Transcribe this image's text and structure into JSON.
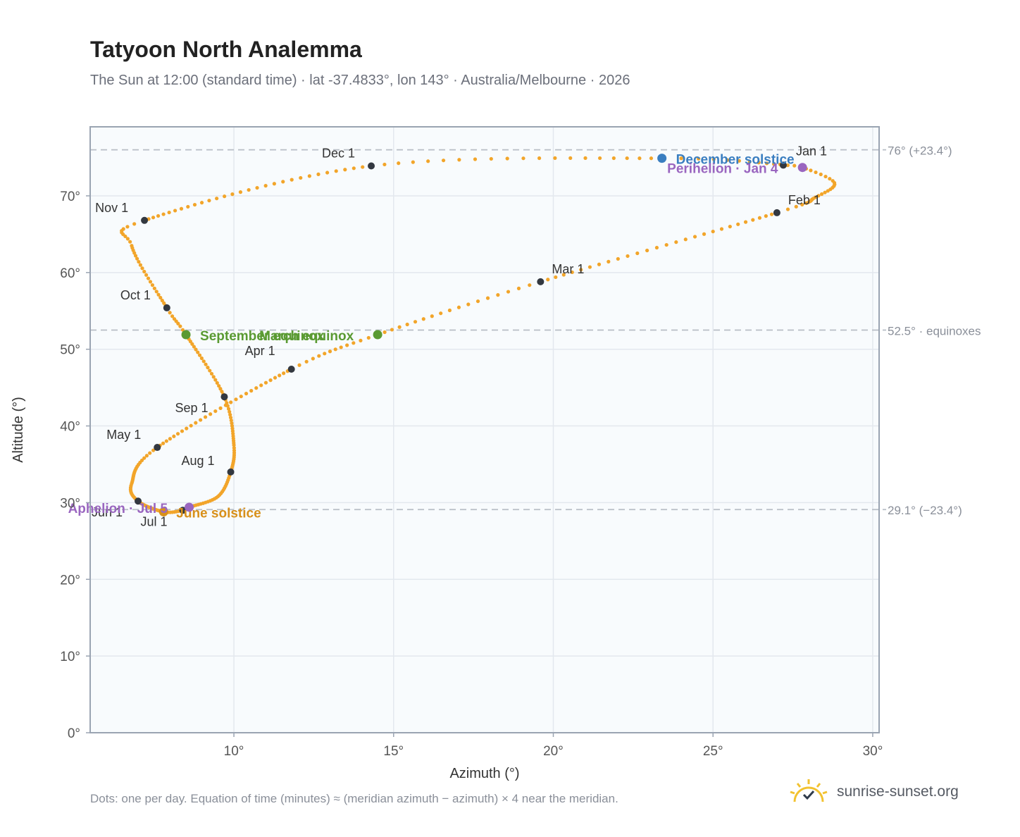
{
  "title": "Tatyoon North Analemma",
  "subtitle": "The Sun at 12:00 (standard time) · lat -37.4833°, lon 143° · Australia/Melbourne · 2026",
  "footnote": "Dots: one per day. Equation of time (minutes) ≈ (meridian azimuth − azimuth) × 4 near the meridian.",
  "brand": {
    "name": "sunrise-sunset.org",
    "icon": "sun-check-icon"
  },
  "colors": {
    "path": "#f2a52a",
    "month_dot": "#333840",
    "solstice_dec": "#3a7ec0",
    "solstice_jun": "#d8901a",
    "equinox": "#5a9a32",
    "perihelion_aphelion": "#9a66c0",
    "reference_line": "#b8bec6",
    "plot_bg": "#f8fbfd",
    "grid": "#e3e8ee"
  },
  "chart_data": {
    "type": "scatter",
    "xlabel": "Azimuth (°)",
    "ylabel": "Altitude (°)",
    "xlim": [
      5.5,
      30.2
    ],
    "ylim": [
      0,
      79
    ],
    "xticks": [
      10,
      15,
      20,
      25,
      30
    ],
    "xtick_labels": [
      "10°",
      "15°",
      "20°",
      "25°",
      "30°"
    ],
    "yticks": [
      0,
      10,
      20,
      30,
      40,
      50,
      60,
      70
    ],
    "ytick_labels": [
      "0°",
      "10°",
      "20°",
      "30°",
      "40°",
      "50°",
      "60°",
      "70°"
    ],
    "grid": true,
    "reference_lines": [
      {
        "y": 76.0,
        "label": "76° (+23.4°)"
      },
      {
        "y": 52.5,
        "label": "52.5° · equinoxes"
      },
      {
        "y": 29.1,
        "label": "29.1° (−23.4°)"
      }
    ],
    "path_anchors": [
      {
        "day": 1,
        "x": 27.2,
        "y": 74.0
      },
      {
        "day": 4,
        "x": 27.8,
        "y": 73.7
      },
      {
        "day": 12,
        "x": 28.8,
        "y": 71.7
      },
      {
        "day": 21,
        "x": 28.2,
        "y": 69.8
      },
      {
        "day": 32,
        "x": 27.0,
        "y": 67.8
      },
      {
        "day": 60,
        "x": 19.6,
        "y": 58.8
      },
      {
        "day": 78,
        "x": 14.5,
        "y": 51.9
      },
      {
        "day": 91,
        "x": 11.8,
        "y": 47.4
      },
      {
        "day": 121,
        "x": 7.6,
        "y": 37.2
      },
      {
        "day": 140,
        "x": 6.8,
        "y": 32.5
      },
      {
        "day": 152,
        "x": 7.0,
        "y": 30.2
      },
      {
        "day": 172,
        "x": 7.8,
        "y": 28.8
      },
      {
        "day": 182,
        "x": 8.4,
        "y": 29.0
      },
      {
        "day": 186,
        "x": 8.6,
        "y": 29.4
      },
      {
        "day": 200,
        "x": 9.5,
        "y": 30.8
      },
      {
        "day": 213,
        "x": 9.9,
        "y": 34.0
      },
      {
        "day": 226,
        "x": 10.0,
        "y": 37.5
      },
      {
        "day": 244,
        "x": 9.7,
        "y": 43.8
      },
      {
        "day": 266,
        "x": 8.5,
        "y": 51.9
      },
      {
        "day": 274,
        "x": 7.9,
        "y": 55.4
      },
      {
        "day": 295,
        "x": 6.8,
        "y": 63.5
      },
      {
        "day": 305,
        "x": 7.2,
        "y": 66.8
      },
      {
        "day": 335,
        "x": 14.3,
        "y": 73.9
      },
      {
        "day": 355,
        "x": 23.4,
        "y": 74.9
      },
      {
        "day": 365,
        "x": 27.1,
        "y": 74.1
      }
    ],
    "month_markers": [
      {
        "label": "Jan 1",
        "x": 27.2,
        "y": 74.0
      },
      {
        "label": "Feb 1",
        "x": 27.0,
        "y": 67.8
      },
      {
        "label": "Mar 1",
        "x": 19.6,
        "y": 58.8
      },
      {
        "label": "Apr 1",
        "x": 11.8,
        "y": 47.4
      },
      {
        "label": "May 1",
        "x": 7.6,
        "y": 37.2
      },
      {
        "label": "Jun 1",
        "x": 7.0,
        "y": 30.2
      },
      {
        "label": "Jul 1",
        "x": 8.4,
        "y": 29.0
      },
      {
        "label": "Aug 1",
        "x": 9.9,
        "y": 34.0
      },
      {
        "label": "Sep 1",
        "x": 9.7,
        "y": 43.8
      },
      {
        "label": "Oct 1",
        "x": 7.9,
        "y": 55.4
      },
      {
        "label": "Nov 1",
        "x": 7.2,
        "y": 66.8
      },
      {
        "label": "Dec 1",
        "x": 14.3,
        "y": 73.9
      }
    ],
    "events": [
      {
        "label": "December solstice",
        "x": 23.4,
        "y": 74.9,
        "kind": "solstice_dec"
      },
      {
        "label": "June solstice",
        "x": 7.8,
        "y": 28.8,
        "kind": "solstice_jun"
      },
      {
        "label": "March equinox",
        "x": 14.5,
        "y": 51.9,
        "kind": "equinox"
      },
      {
        "label": "September equinox",
        "x": 8.5,
        "y": 51.9,
        "kind": "equinox"
      },
      {
        "label": "Perihelion · Jan 4",
        "x": 27.8,
        "y": 73.7,
        "kind": "perihelion_aphelion"
      },
      {
        "label": "Aphelion · Jul 5",
        "x": 8.6,
        "y": 29.4,
        "kind": "perihelion_aphelion"
      }
    ]
  }
}
